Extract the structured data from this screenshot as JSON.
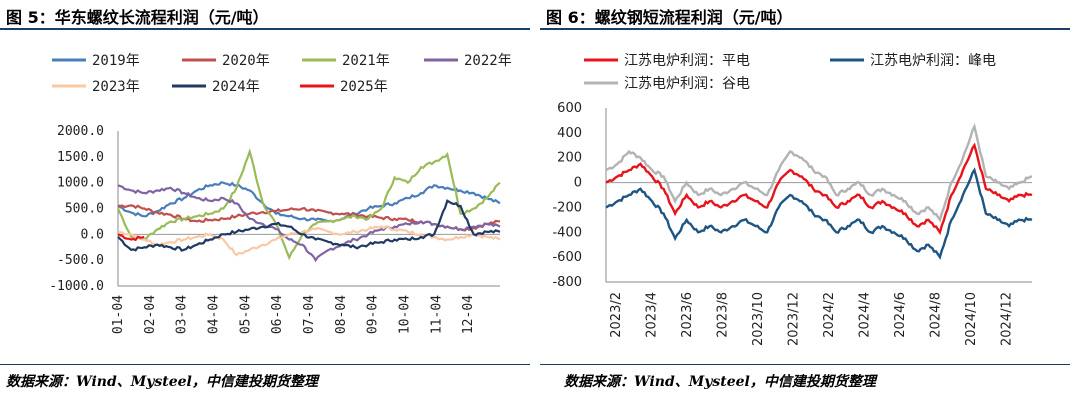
{
  "left": {
    "title": "图 5：华东螺纹长流程利润（元/吨）",
    "source": "数据来源：Wind、Mysteel，中信建投期货整理"
  },
  "right": {
    "title": "图 6：螺纹钢短流程利润（元/吨）",
    "source": "数据来源：Wind、Mysteel，中信建投期货整理"
  },
  "chart_data": [
    {
      "type": "line",
      "title": "华东螺纹长流程利润（元/吨）",
      "x_ticks": [
        "01-04",
        "02-04",
        "03-04",
        "04-04",
        "05-04",
        "06-04",
        "07-04",
        "08-04",
        "09-04",
        "10-04",
        "11-04",
        "12-04"
      ],
      "y_ticks": [
        "2000.0",
        "1500.0",
        "1000.0",
        "500.0",
        "0.0",
        "-500.0",
        "-1000.0"
      ],
      "ylim": [
        -1000,
        2000
      ],
      "legend_position": "top",
      "series": [
        {
          "name": "2019年",
          "color": "#4a7ebb",
          "values": [
            550,
            420,
            350,
            450,
            600,
            700,
            850,
            950,
            1000,
            950,
            850,
            600,
            400,
            350,
            300,
            280,
            250,
            300,
            400,
            500,
            550,
            600,
            700,
            800,
            950,
            900,
            850,
            800,
            700,
            600
          ]
        },
        {
          "name": "2020年",
          "color": "#c0504d",
          "values": [
            550,
            560,
            500,
            420,
            380,
            300,
            250,
            280,
            300,
            350,
            400,
            430,
            450,
            480,
            500,
            450,
            420,
            400,
            380,
            350,
            320,
            300,
            280,
            250,
            200,
            150,
            100,
            120,
            200,
            250
          ]
        },
        {
          "name": "2021年",
          "color": "#9bbb59",
          "values": [
            500,
            -50,
            -100,
            100,
            250,
            300,
            350,
            400,
            500,
            900,
            1600,
            600,
            200,
            -450,
            0,
            200,
            250,
            300,
            350,
            300,
            500,
            1100,
            1000,
            1300,
            1400,
            1550,
            400,
            500,
            700,
            1000
          ]
        },
        {
          "name": "2022年",
          "color": "#8064a2",
          "values": [
            950,
            850,
            800,
            850,
            900,
            800,
            700,
            650,
            700,
            600,
            300,
            200,
            100,
            -100,
            -200,
            -500,
            -300,
            -200,
            -100,
            0,
            100,
            150,
            200,
            250,
            200,
            150,
            100,
            150,
            200,
            150
          ]
        },
        {
          "name": "2023年",
          "color": "#f9c9a5",
          "values": [
            50,
            0,
            -100,
            -200,
            -150,
            -100,
            -50,
            0,
            -100,
            -400,
            -300,
            -200,
            -100,
            0,
            50,
            100,
            50,
            0,
            50,
            100,
            150,
            100,
            50,
            0,
            -50,
            -100,
            -50,
            0,
            -50,
            -100
          ]
        },
        {
          "name": "2024年",
          "color": "#1f3864",
          "values": [
            -50,
            -300,
            -250,
            -200,
            -250,
            -300,
            -200,
            -100,
            0,
            50,
            100,
            150,
            200,
            150,
            0,
            -100,
            -150,
            -200,
            -250,
            -200,
            -150,
            -100,
            -100,
            -50,
            0,
            650,
            550,
            0,
            50,
            50
          ]
        },
        {
          "name": "2025年",
          "color": "#e8141c",
          "values": [
            0,
            -100,
            -50
          ]
        }
      ]
    },
    {
      "type": "line",
      "title": "螺纹钢短流程利润（元/吨）",
      "x_ticks": [
        "2023/2",
        "2023/4",
        "2023/6",
        "2023/8",
        "2023/10",
        "2023/12",
        "2024/2",
        "2024/4",
        "2024/6",
        "2024/8",
        "2024/10",
        "2024/12"
      ],
      "y_ticks": [
        "600",
        "400",
        "200",
        "0",
        "-200",
        "-400",
        "-600",
        "-800"
      ],
      "ylim": [
        -800,
        600
      ],
      "legend_position": "top",
      "series": [
        {
          "name": "江苏电炉利润：平电",
          "color": "#e8141c",
          "values": [
            0,
            50,
            100,
            150,
            50,
            -50,
            -250,
            -100,
            -200,
            -150,
            -200,
            -150,
            -100,
            -150,
            -200,
            0,
            100,
            50,
            -50,
            -100,
            -200,
            -150,
            -100,
            -200,
            -150,
            -200,
            -250,
            -350,
            -300,
            -400,
            -100,
            100,
            300,
            -50,
            -100,
            -150,
            -100,
            -100
          ]
        },
        {
          "name": "江苏电炉利润：峰电",
          "color": "#1f5582",
          "values": [
            -200,
            -150,
            -100,
            -50,
            -150,
            -250,
            -450,
            -300,
            -400,
            -350,
            -400,
            -350,
            -300,
            -350,
            -400,
            -200,
            -100,
            -150,
            -250,
            -300,
            -400,
            -350,
            -300,
            -400,
            -350,
            -400,
            -450,
            -550,
            -500,
            -600,
            -300,
            -100,
            100,
            -250,
            -300,
            -350,
            -300,
            -300
          ]
        },
        {
          "name": "江苏电炉利润：谷电",
          "color": "#b3b3b3",
          "values": [
            100,
            150,
            250,
            200,
            100,
            50,
            -150,
            0,
            -100,
            -50,
            -100,
            -50,
            0,
            -50,
            -100,
            100,
            250,
            200,
            100,
            50,
            -100,
            -50,
            0,
            -100,
            -50,
            -100,
            -150,
            -250,
            -200,
            -300,
            0,
            200,
            450,
            50,
            0,
            -50,
            0,
            50
          ]
        }
      ]
    }
  ]
}
